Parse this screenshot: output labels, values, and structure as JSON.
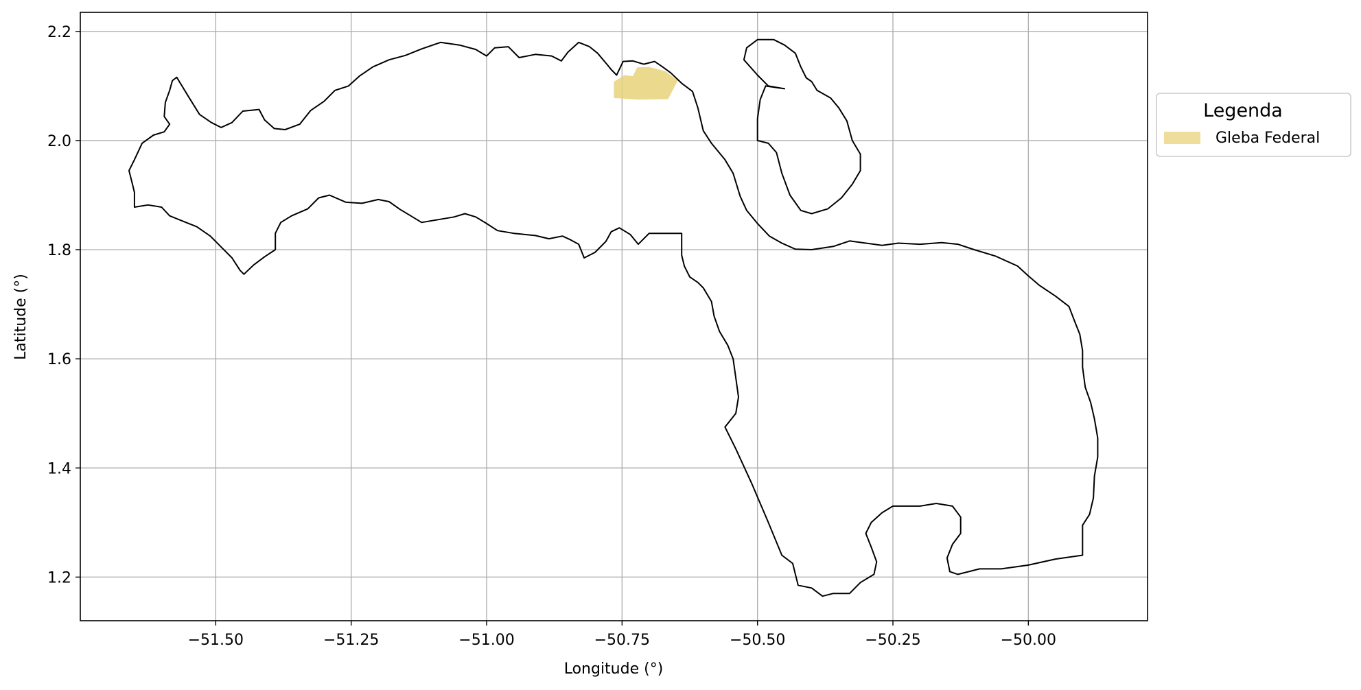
{
  "chart_data": {
    "type": "map",
    "xlabel": "Longitude (°)",
    "ylabel": "Latitude (°)",
    "xlim": [
      -51.75,
      -49.78
    ],
    "ylim": [
      1.12,
      2.235
    ],
    "x_ticks": [
      -51.5,
      -51.25,
      -51.0,
      -50.75,
      -50.5,
      -50.25,
      -50.0
    ],
    "x_tick_labels": [
      "−51.50",
      "−51.25",
      "−51.00",
      "−50.75",
      "−50.50",
      "−50.25",
      "−50.00"
    ],
    "y_ticks": [
      1.2,
      1.4,
      1.6,
      1.8,
      2.0,
      2.2
    ],
    "y_tick_labels": [
      "1.2",
      "1.4",
      "1.6",
      "1.8",
      "2.0",
      "2.2"
    ],
    "grid": true,
    "legend": {
      "title": "Legenda",
      "placement": "outside-right",
      "entries": [
        {
          "label": "Gleba Federal",
          "color": "#e8d27a"
        }
      ]
    },
    "colors": {
      "boundary": "#000000",
      "gleba": "#e8d27a",
      "grid": "#b0b0b0"
    },
    "layers": [
      {
        "name": "municipal-boundary",
        "kind": "outline",
        "rings": [
          [
            [
              -51.636,
              1.995
            ],
            [
              -51.615,
              2.01
            ],
            [
              -51.595,
              2.016
            ],
            [
              -51.585,
              2.03
            ],
            [
              -51.595,
              2.044
            ],
            [
              -51.593,
              2.07
            ],
            [
              -51.585,
              2.092
            ],
            [
              -51.58,
              2.11
            ],
            [
              -51.572,
              2.116
            ],
            [
              -51.55,
              2.08
            ],
            [
              -51.53,
              2.048
            ],
            [
              -51.508,
              2.033
            ],
            [
              -51.49,
              2.024
            ],
            [
              -51.47,
              2.033
            ],
            [
              -51.45,
              2.054
            ],
            [
              -51.42,
              2.057
            ],
            [
              -51.41,
              2.038
            ],
            [
              -51.392,
              2.022
            ],
            [
              -51.372,
              2.02
            ],
            [
              -51.345,
              2.03
            ],
            [
              -51.325,
              2.055
            ],
            [
              -51.3,
              2.072
            ],
            [
              -51.28,
              2.092
            ],
            [
              -51.255,
              2.1
            ],
            [
              -51.235,
              2.118
            ],
            [
              -51.21,
              2.135
            ],
            [
              -51.18,
              2.148
            ],
            [
              -51.15,
              2.156
            ],
            [
              -51.12,
              2.168
            ],
            [
              -51.085,
              2.18
            ],
            [
              -51.05,
              2.175
            ],
            [
              -51.02,
              2.167
            ],
            [
              -51.0,
              2.155
            ],
            [
              -50.985,
              2.17
            ],
            [
              -50.96,
              2.172
            ],
            [
              -50.94,
              2.152
            ],
            [
              -50.91,
              2.158
            ],
            [
              -50.88,
              2.155
            ],
            [
              -50.862,
              2.146
            ],
            [
              -50.85,
              2.162
            ],
            [
              -50.83,
              2.18
            ],
            [
              -50.81,
              2.172
            ],
            [
              -50.795,
              2.16
            ],
            [
              -50.778,
              2.14
            ],
            [
              -50.77,
              2.13
            ],
            [
              -50.76,
              2.12
            ],
            [
              -50.748,
              2.145
            ],
            [
              -50.73,
              2.146
            ],
            [
              -50.71,
              2.14
            ],
            [
              -50.69,
              2.145
            ],
            [
              -50.675,
              2.135
            ],
            [
              -50.66,
              2.124
            ],
            [
              -50.64,
              2.105
            ],
            [
              -50.62,
              2.09
            ],
            [
              -50.61,
              2.06
            ],
            [
              -50.6,
              2.018
            ],
            [
              -50.585,
              1.995
            ],
            [
              -50.56,
              1.965
            ],
            [
              -50.545,
              1.94
            ],
            [
              -50.532,
              1.898
            ],
            [
              -50.52,
              1.872
            ],
            [
              -50.5,
              1.848
            ],
            [
              -50.478,
              1.825
            ],
            [
              -50.455,
              1.812
            ],
            [
              -50.43,
              1.801
            ],
            [
              -50.4,
              1.8
            ],
            [
              -50.36,
              1.806
            ],
            [
              -50.33,
              1.816
            ],
            [
              -50.3,
              1.812
            ],
            [
              -50.27,
              1.808
            ],
            [
              -50.24,
              1.812
            ],
            [
              -50.2,
              1.81
            ],
            [
              -50.16,
              1.813
            ],
            [
              -50.13,
              1.81
            ],
            [
              -50.1,
              1.8
            ],
            [
              -50.06,
              1.788
            ],
            [
              -50.02,
              1.77
            ],
            [
              -50.0,
              1.752
            ],
            [
              -49.98,
              1.735
            ],
            [
              -49.95,
              1.715
            ],
            [
              -49.925,
              1.696
            ],
            [
              -49.915,
              1.67
            ],
            [
              -49.905,
              1.645
            ],
            [
              -49.9,
              1.615
            ],
            [
              -49.9,
              1.585
            ],
            [
              -49.895,
              1.548
            ],
            [
              -49.885,
              1.52
            ],
            [
              -49.878,
              1.49
            ],
            [
              -49.872,
              1.455
            ],
            [
              -49.872,
              1.42
            ],
            [
              -49.878,
              1.385
            ],
            [
              -49.88,
              1.345
            ],
            [
              -49.887,
              1.315
            ],
            [
              -49.9,
              1.295
            ],
            [
              -49.9,
              1.24
            ],
            [
              -49.95,
              1.233
            ],
            [
              -50.0,
              1.222
            ],
            [
              -50.05,
              1.215
            ],
            [
              -50.09,
              1.215
            ],
            [
              -50.13,
              1.205
            ],
            [
              -50.145,
              1.21
            ],
            [
              -50.15,
              1.235
            ],
            [
              -50.14,
              1.26
            ],
            [
              -50.125,
              1.28
            ],
            [
              -50.125,
              1.31
            ],
            [
              -50.14,
              1.33
            ],
            [
              -50.17,
              1.335
            ],
            [
              -50.2,
              1.33
            ],
            [
              -50.25,
              1.33
            ],
            [
              -50.27,
              1.318
            ],
            [
              -50.29,
              1.3
            ],
            [
              -50.3,
              1.28
            ],
            [
              -50.29,
              1.255
            ],
            [
              -50.28,
              1.228
            ],
            [
              -50.285,
              1.205
            ],
            [
              -50.31,
              1.19
            ],
            [
              -50.33,
              1.17
            ],
            [
              -50.36,
              1.17
            ],
            [
              -50.38,
              1.165
            ],
            [
              -50.4,
              1.18
            ],
            [
              -50.425,
              1.185
            ],
            [
              -50.43,
              1.205
            ],
            [
              -50.435,
              1.225
            ],
            [
              -50.455,
              1.24
            ],
            [
              -50.48,
              1.3
            ],
            [
              -50.51,
              1.37
            ],
            [
              -50.54,
              1.435
            ],
            [
              -50.56,
              1.475
            ],
            [
              -50.54,
              1.5
            ],
            [
              -50.535,
              1.53
            ],
            [
              -50.54,
              1.565
            ],
            [
              -50.545,
              1.6
            ],
            [
              -50.555,
              1.625
            ],
            [
              -50.57,
              1.65
            ],
            [
              -50.58,
              1.678
            ],
            [
              -50.585,
              1.705
            ],
            [
              -50.6,
              1.73
            ],
            [
              -50.61,
              1.74
            ],
            [
              -50.625,
              1.75
            ],
            [
              -50.635,
              1.77
            ],
            [
              -50.64,
              1.79
            ],
            [
              -50.64,
              1.83
            ],
            [
              -50.7,
              1.83
            ],
            [
              -50.72,
              1.81
            ],
            [
              -50.735,
              1.828
            ],
            [
              -50.755,
              1.84
            ],
            [
              -50.77,
              1.833
            ],
            [
              -50.78,
              1.815
            ],
            [
              -50.8,
              1.795
            ],
            [
              -50.81,
              1.79
            ],
            [
              -50.82,
              1.785
            ],
            [
              -50.83,
              1.81
            ],
            [
              -50.845,
              1.818
            ],
            [
              -50.86,
              1.825
            ],
            [
              -50.885,
              1.82
            ],
            [
              -50.91,
              1.826
            ],
            [
              -50.95,
              1.83
            ],
            [
              -50.98,
              1.835
            ],
            [
              -51.0,
              1.848
            ],
            [
              -51.02,
              1.86
            ],
            [
              -51.04,
              1.866
            ],
            [
              -51.06,
              1.86
            ],
            [
              -51.09,
              1.855
            ],
            [
              -51.12,
              1.85
            ],
            [
              -51.14,
              1.862
            ],
            [
              -51.16,
              1.874
            ],
            [
              -51.18,
              1.888
            ],
            [
              -51.2,
              1.892
            ],
            [
              -51.23,
              1.885
            ],
            [
              -51.26,
              1.887
            ],
            [
              -51.29,
              1.9
            ],
            [
              -51.31,
              1.895
            ],
            [
              -51.33,
              1.875
            ],
            [
              -51.36,
              1.862
            ],
            [
              -51.38,
              1.85
            ],
            [
              -51.39,
              1.83
            ],
            [
              -51.39,
              1.8
            ],
            [
              -51.41,
              1.787
            ],
            [
              -51.43,
              1.772
            ],
            [
              -51.448,
              1.755
            ],
            [
              -51.455,
              1.762
            ],
            [
              -51.47,
              1.785
            ],
            [
              -51.49,
              1.805
            ],
            [
              -51.51,
              1.825
            ],
            [
              -51.535,
              1.842
            ],
            [
              -51.56,
              1.852
            ],
            [
              -51.585,
              1.862
            ],
            [
              -51.6,
              1.878
            ],
            [
              -51.625,
              1.882
            ],
            [
              -51.65,
              1.878
            ],
            [
              -51.65,
              1.905
            ],
            [
              -51.655,
              1.925
            ],
            [
              -51.66,
              1.945
            ],
            [
              -51.65,
              1.965
            ],
            [
              -51.636,
              1.995
            ]
          ],
          [
            [
              -50.45,
              2.095
            ],
            [
              -50.48,
              2.1
            ],
            [
              -50.5,
              2.12
            ],
            [
              -50.525,
              2.148
            ],
            [
              -50.52,
              2.17
            ],
            [
              -50.5,
              2.185
            ],
            [
              -50.47,
              2.185
            ],
            [
              -50.45,
              2.175
            ],
            [
              -50.43,
              2.16
            ],
            [
              -50.42,
              2.135
            ],
            [
              -50.41,
              2.115
            ],
            [
              -50.4,
              2.108
            ],
            [
              -50.39,
              2.092
            ],
            [
              -50.365,
              2.078
            ],
            [
              -50.35,
              2.06
            ],
            [
              -50.335,
              2.036
            ],
            [
              -50.325,
              2.0
            ],
            [
              -50.31,
              1.975
            ],
            [
              -50.31,
              1.945
            ],
            [
              -50.325,
              1.92
            ],
            [
              -50.345,
              1.895
            ],
            [
              -50.37,
              1.875
            ],
            [
              -50.4,
              1.866
            ],
            [
              -50.42,
              1.872
            ],
            [
              -50.44,
              1.9
            ],
            [
              -50.455,
              1.94
            ],
            [
              -50.465,
              1.978
            ],
            [
              -50.48,
              1.995
            ],
            [
              -50.5,
              2.0
            ],
            [
              -50.5,
              2.04
            ],
            [
              -50.495,
              2.075
            ],
            [
              -50.485,
              2.1
            ]
          ]
        ]
      },
      {
        "name": "gleba-federal",
        "kind": "fill",
        "label": "Gleba Federal",
        "rings": [
          [
            [
              -50.765,
              2.108
            ],
            [
              -50.745,
              2.12
            ],
            [
              -50.73,
              2.118
            ],
            [
              -50.722,
              2.134
            ],
            [
              -50.7,
              2.135
            ],
            [
              -50.67,
              2.127
            ],
            [
              -50.647,
              2.11
            ],
            [
              -50.665,
              2.076
            ],
            [
              -50.72,
              2.075
            ],
            [
              -50.765,
              2.078
            ]
          ]
        ]
      }
    ]
  }
}
